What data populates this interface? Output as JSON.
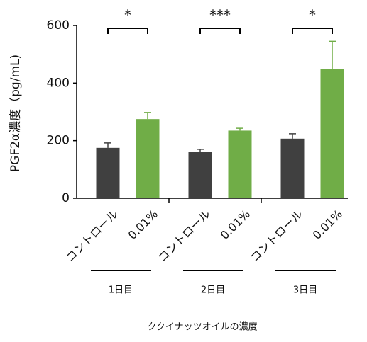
{
  "chart_data": {
    "type": "bar",
    "ylabel": "PGF2α濃度（pg/mL)",
    "xlabel": "ククイナッツオイルの濃度",
    "categories": [
      "1日目",
      "2日目",
      "3日目"
    ],
    "series": [
      {
        "name": "コントロール",
        "color": "#404040",
        "values": [
          175,
          162,
          207
        ],
        "errors": [
          17,
          8,
          17
        ]
      },
      {
        "name": "0.01%",
        "color": "#70ad47",
        "values": [
          275,
          235,
          450
        ],
        "errors": [
          23,
          8,
          95
        ]
      }
    ],
    "significance": [
      "*",
      "***",
      "*"
    ],
    "ylim": [
      0,
      600
    ],
    "yticks": [
      0,
      200,
      400,
      600
    ],
    "grid": false
  }
}
